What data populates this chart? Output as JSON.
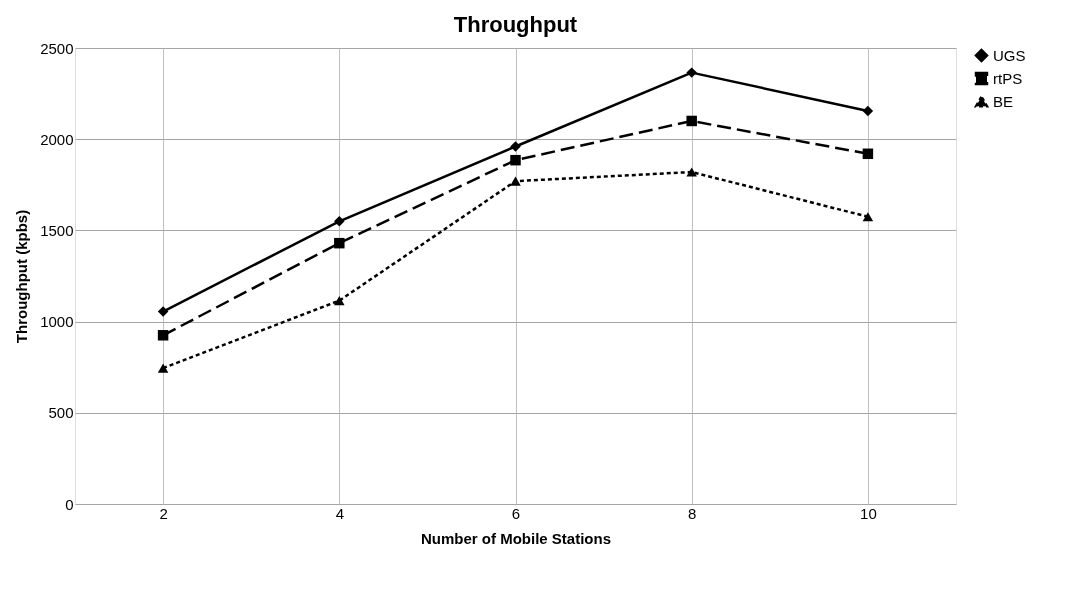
{
  "chart_data": {
    "type": "line",
    "title": "Throughput",
    "xlabel": "Number of Mobile Stations",
    "ylabel": "Throughput (kpbs)",
    "categories": [
      "2",
      "4",
      "6",
      "8",
      "10"
    ],
    "series": [
      {
        "name": "UGS",
        "color": "#000000",
        "line_style": "solid",
        "marker": "diamond",
        "values": [
          1055,
          1550,
          1960,
          2365,
          2155
        ]
      },
      {
        "name": "rtPS",
        "color": "#000000",
        "line_style": "dashed",
        "marker": "square",
        "values": [
          925,
          1430,
          1885,
          2100,
          1920
        ]
      },
      {
        "name": "BE",
        "color": "#000000",
        "line_style": "dotted",
        "marker": "triangle",
        "values": [
          745,
          1115,
          1770,
          1820,
          1575
        ]
      }
    ],
    "ylim": [
      0,
      2500
    ],
    "yticks": [
      0,
      500,
      1000,
      1500,
      2000,
      2500
    ],
    "grid": true,
    "legend": "right"
  }
}
